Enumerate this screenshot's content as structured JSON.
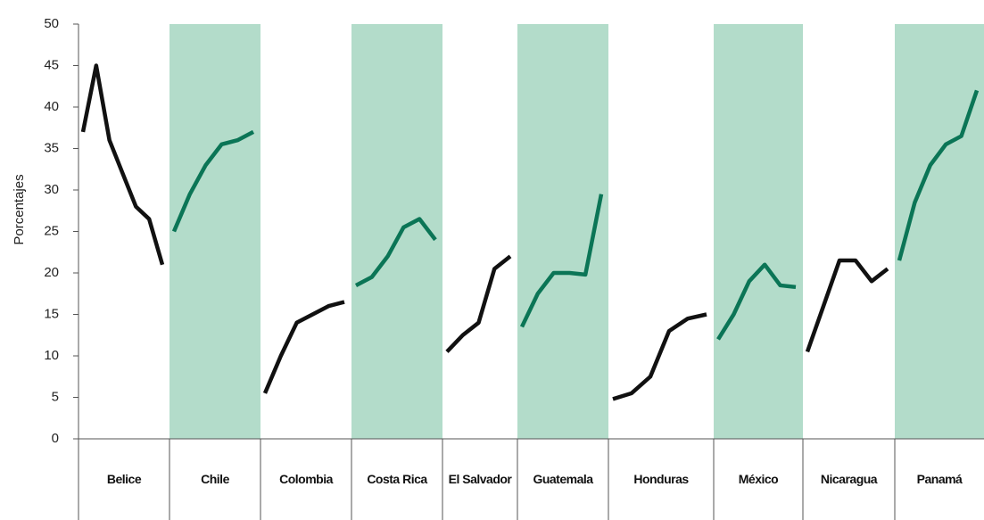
{
  "chart_data": {
    "type": "line",
    "y_label": "Porcentajes",
    "ylim": [
      0,
      50
    ],
    "yticks": [
      0,
      5,
      10,
      15,
      20,
      25,
      30,
      35,
      40,
      45,
      50
    ],
    "band_color": "#b3dcca",
    "series": [
      {
        "name": "Belice",
        "color": "#111111",
        "shaded": false,
        "values": [
          37,
          45,
          36,
          32,
          28,
          26.5,
          21
        ]
      },
      {
        "name": "Chile",
        "color": "#0b7556",
        "shaded": true,
        "values": [
          25,
          29.5,
          33,
          35.5,
          36,
          37
        ]
      },
      {
        "name": "Colombia",
        "color": "#111111",
        "shaded": false,
        "values": [
          5.5,
          10,
          14,
          15,
          16,
          16.5
        ]
      },
      {
        "name": "Costa Rica",
        "color": "#0b7556",
        "shaded": true,
        "values": [
          18.5,
          19.5,
          22,
          25.5,
          26.5,
          24
        ]
      },
      {
        "name": "El Salvador",
        "color": "#111111",
        "shaded": false,
        "values": [
          10.5,
          12.5,
          14,
          20.5,
          22
        ]
      },
      {
        "name": "Guatemala",
        "color": "#0b7556",
        "shaded": true,
        "values": [
          13.5,
          17.5,
          20,
          20,
          19.8,
          29.5
        ]
      },
      {
        "name": "Honduras",
        "color": "#111111",
        "shaded": false,
        "values": [
          4.8,
          5.5,
          7.5,
          13,
          14.5,
          15
        ]
      },
      {
        "name": "México",
        "color": "#0b7556",
        "shaded": true,
        "values": [
          12,
          15,
          19,
          21,
          18.5,
          18.3
        ]
      },
      {
        "name": "Nicaragua",
        "color": "#111111",
        "shaded": false,
        "values": [
          10.5,
          16,
          21.5,
          21.5,
          19,
          20.5
        ]
      },
      {
        "name": "Panamá",
        "color": "#0b7556",
        "shaded": true,
        "values": [
          21.5,
          28.5,
          33,
          35.5,
          36.5,
          42
        ]
      }
    ]
  }
}
